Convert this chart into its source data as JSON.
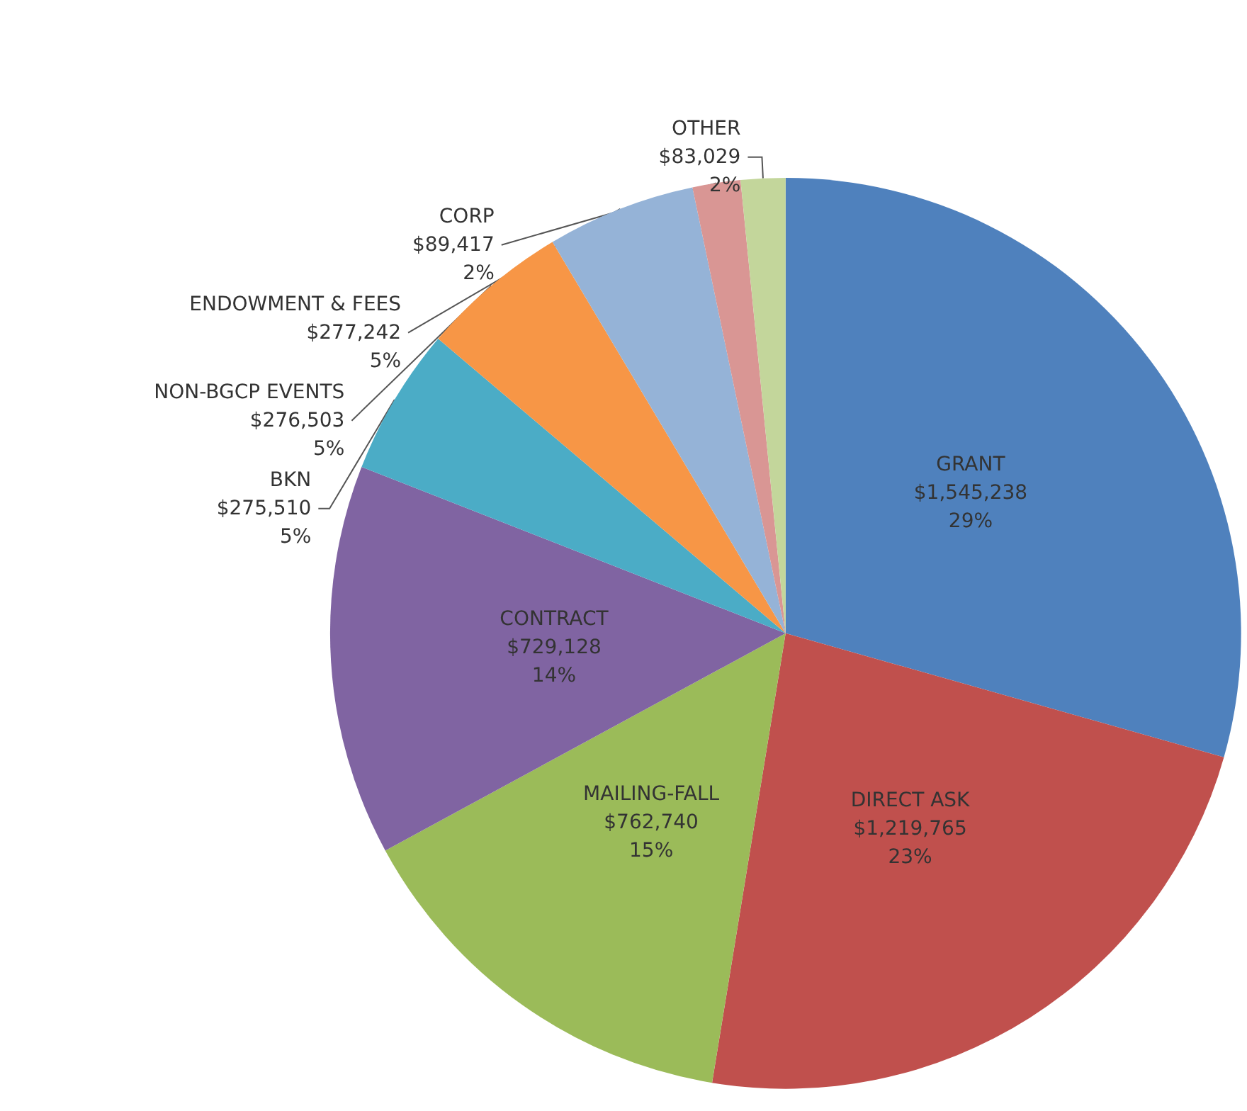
{
  "chart_data": {
    "type": "pie",
    "categories": [
      "GRANT",
      "DIRECT ASK",
      "MAILING-FALL",
      "CONTRACT",
      "BKN",
      "NON-BGCP EVENTS",
      "ENDOWMENT & FEES",
      "CORP",
      "OTHER"
    ],
    "values": [
      1545238,
      1219765,
      762740,
      729128,
      275510,
      276503,
      277242,
      89417,
      83029
    ],
    "value_labels": [
      "$1,545,238\n29%",
      "$1,219,765\n23%",
      "$762,740\n15%",
      "$729,128\n14%",
      "$275,510\n5%",
      "$276,503\n5%",
      "$277,242\n5%",
      "$89,417\n2%",
      "$83,029\n2%"
    ],
    "colors": [
      "#4f81bd",
      "#c0504d",
      "#9bbb59",
      "#8064a2",
      "#4bacc6",
      "#f79646",
      "#95b3d7",
      "#d99694",
      "#c3d69b"
    ],
    "legend": false
  }
}
